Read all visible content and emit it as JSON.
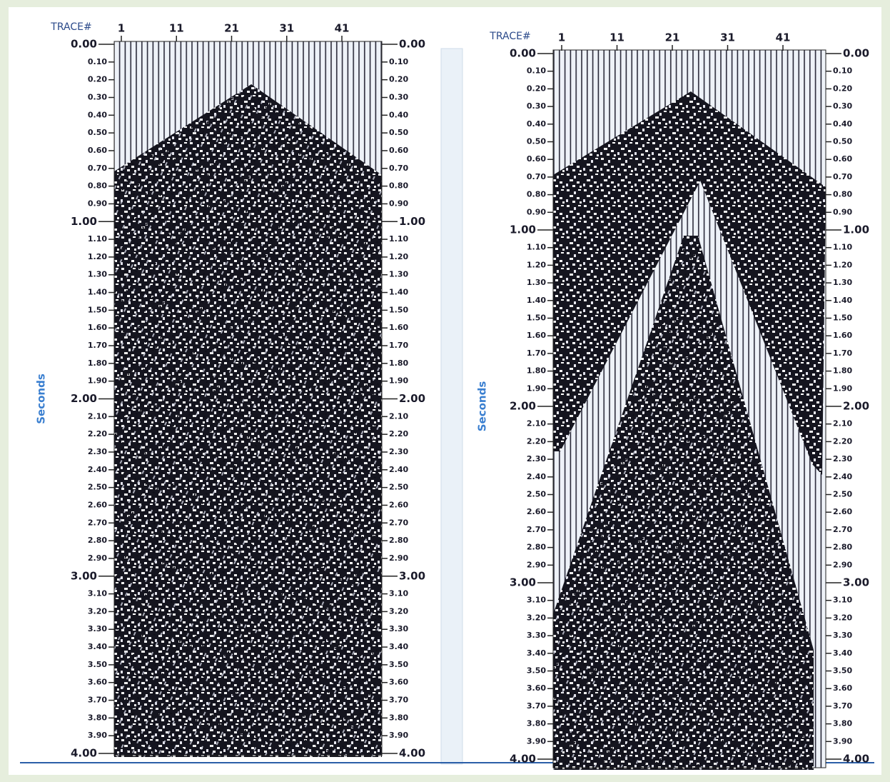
{
  "panels": [
    {
      "x_label": "TRACE#",
      "y_label": "Seconds",
      "xlim": [
        1,
        49
      ],
      "xticks": [
        1,
        11,
        21,
        31,
        41
      ],
      "ylim": [
        0,
        4
      ],
      "yticks": [
        {
          "value": 0,
          "label": "0.00"
        },
        {
          "value": 0.1,
          "label": "0.10"
        },
        {
          "value": 0.2,
          "label": "0.20"
        },
        {
          "value": 0.3,
          "label": "0.30"
        },
        {
          "value": 0.4,
          "label": "0.40"
        },
        {
          "value": 0.5,
          "label": "0.50"
        },
        {
          "value": 0.6,
          "label": "0.60"
        },
        {
          "value": 0.7,
          "label": "0.70"
        },
        {
          "value": 0.8,
          "label": "0.80"
        },
        {
          "value": 0.9,
          "label": "0.90"
        },
        {
          "value": 1,
          "label": "1.00"
        },
        {
          "value": 1.1,
          "label": "1.10"
        },
        {
          "value": 1.2,
          "label": "1.20"
        },
        {
          "value": 1.3,
          "label": "1.30"
        },
        {
          "value": 1.4,
          "label": "1.40"
        },
        {
          "value": 1.5,
          "label": "1.50"
        },
        {
          "value": 1.6,
          "label": "1.60"
        },
        {
          "value": 1.7,
          "label": "1.70"
        },
        {
          "value": 1.8,
          "label": "1.80"
        },
        {
          "value": 1.9,
          "label": "1.90"
        },
        {
          "value": 2,
          "label": "2.00"
        },
        {
          "value": 2.1,
          "label": "2.10"
        },
        {
          "value": 2.2,
          "label": "2.20"
        },
        {
          "value": 2.3,
          "label": "2.30"
        },
        {
          "value": 2.4,
          "label": "2.40"
        },
        {
          "value": 2.5,
          "label": "2.50"
        },
        {
          "value": 2.6,
          "label": "2.60"
        },
        {
          "value": 2.7,
          "label": "2.70"
        },
        {
          "value": 2.8,
          "label": "2.80"
        },
        {
          "value": 2.9,
          "label": "2.90"
        },
        {
          "value": 3,
          "label": "3.00"
        },
        {
          "value": 3.1,
          "label": "3.10"
        },
        {
          "value": 3.2,
          "label": "3.20"
        },
        {
          "value": 3.3,
          "label": "3.30"
        },
        {
          "value": 3.4,
          "label": "3.40"
        },
        {
          "value": 3.5,
          "label": "3.50"
        },
        {
          "value": 3.6,
          "label": "3.60"
        },
        {
          "value": 3.7,
          "label": "3.70"
        },
        {
          "value": 3.8,
          "label": "3.80"
        },
        {
          "value": 3.9,
          "label": "3.90"
        },
        {
          "value": 4,
          "label": "4.00"
        }
      ]
    },
    {
      "x_label": "TRACE#",
      "y_label": "Seconds",
      "xlim": [
        1,
        49
      ],
      "xticks": [
        1,
        11,
        21,
        31,
        41
      ],
      "ylim": [
        0,
        4
      ],
      "yticks": [
        {
          "value": 0,
          "label": "0.00"
        },
        {
          "value": 0.1,
          "label": "0.10"
        },
        {
          "value": 0.2,
          "label": "0.20"
        },
        {
          "value": 0.3,
          "label": "0.30"
        },
        {
          "value": 0.4,
          "label": "0.40"
        },
        {
          "value": 0.5,
          "label": "0.50"
        },
        {
          "value": 0.6,
          "label": "0.60"
        },
        {
          "value": 0.7,
          "label": "0.70"
        },
        {
          "value": 0.8,
          "label": "0.80"
        },
        {
          "value": 0.9,
          "label": "0.90"
        },
        {
          "value": 1,
          "label": "1.00"
        },
        {
          "value": 1.1,
          "label": "1.10"
        },
        {
          "value": 1.2,
          "label": "1.20"
        },
        {
          "value": 1.3,
          "label": "1.30"
        },
        {
          "value": 1.4,
          "label": "1.40"
        },
        {
          "value": 1.5,
          "label": "1.50"
        },
        {
          "value": 1.6,
          "label": "1.60"
        },
        {
          "value": 1.7,
          "label": "1.70"
        },
        {
          "value": 1.8,
          "label": "1.80"
        },
        {
          "value": 1.9,
          "label": "1.90"
        },
        {
          "value": 2,
          "label": "2.00"
        },
        {
          "value": 2.1,
          "label": "2.10"
        },
        {
          "value": 2.2,
          "label": "2.20"
        },
        {
          "value": 2.3,
          "label": "2.30"
        },
        {
          "value": 2.4,
          "label": "2.40"
        },
        {
          "value": 2.5,
          "label": "2.50"
        },
        {
          "value": 2.6,
          "label": "2.60"
        },
        {
          "value": 2.7,
          "label": "2.70"
        },
        {
          "value": 2.8,
          "label": "2.80"
        },
        {
          "value": 2.9,
          "label": "2.90"
        },
        {
          "value": 3,
          "label": "3.00"
        },
        {
          "value": 3.1,
          "label": "3.10"
        },
        {
          "value": 3.2,
          "label": "3.20"
        },
        {
          "value": 3.3,
          "label": "3.30"
        },
        {
          "value": 3.4,
          "label": "3.40"
        },
        {
          "value": 3.5,
          "label": "3.50"
        },
        {
          "value": 3.6,
          "label": "3.60"
        },
        {
          "value": 3.7,
          "label": "3.70"
        },
        {
          "value": 3.8,
          "label": "3.80"
        },
        {
          "value": 3.9,
          "label": "3.90"
        },
        {
          "value": 4,
          "label": "4.00"
        }
      ]
    }
  ]
}
